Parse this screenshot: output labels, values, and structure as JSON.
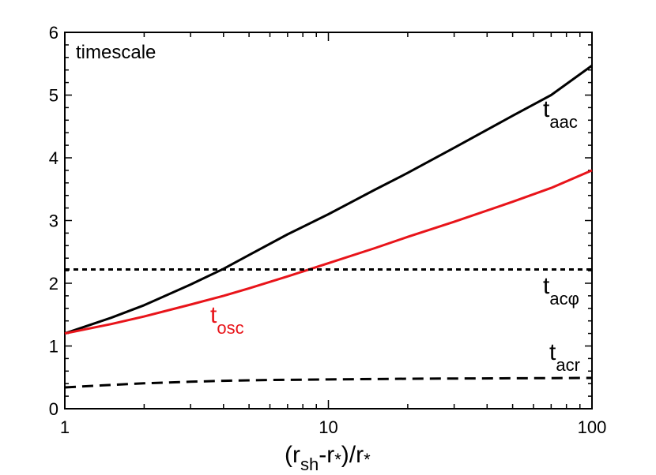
{
  "chart_data": {
    "type": "line",
    "title": "timescale",
    "xlabel": {
      "main": "(r",
      "sub1": "sh",
      "mid": "-r",
      "sub2": "*",
      "end": ")/r",
      "sub3": "*"
    },
    "ylabel": "",
    "xscale": "log",
    "xlim": [
      1,
      100
    ],
    "ylim": [
      0,
      6
    ],
    "x_ticks": [
      1,
      10,
      100
    ],
    "x_tick_labels": [
      "1",
      "10",
      "100"
    ],
    "y_ticks": [
      0,
      1,
      2,
      3,
      4,
      5,
      6
    ],
    "y_tick_labels": [
      "0",
      "1",
      "2",
      "3",
      "4",
      "5",
      "6"
    ],
    "grid": false,
    "series": [
      {
        "key": "aac",
        "label_main": "t",
        "label_sub": "aac",
        "color": "#000000",
        "dash": "solid",
        "x": [
          1,
          1.5,
          2,
          3,
          4,
          5,
          7,
          10,
          15,
          20,
          30,
          50,
          70,
          100
        ],
        "y": [
          1.2,
          1.45,
          1.65,
          1.98,
          2.23,
          2.45,
          2.78,
          3.1,
          3.49,
          3.76,
          4.16,
          4.67,
          5.0,
          5.47
        ]
      },
      {
        "key": "osc",
        "label_main": "t",
        "label_sub": "osc",
        "color": "#e8141a",
        "dash": "solid",
        "x": [
          1,
          1.5,
          2,
          3,
          4,
          5,
          7,
          10,
          15,
          20,
          30,
          50,
          70,
          100
        ],
        "y": [
          1.2,
          1.35,
          1.47,
          1.66,
          1.8,
          1.92,
          2.11,
          2.32,
          2.56,
          2.74,
          2.98,
          3.3,
          3.52,
          3.8
        ]
      },
      {
        "key": "acphi",
        "label_main": "t",
        "label_sub": "acφ",
        "color": "#000000",
        "dash": "short",
        "x": [
          1,
          100
        ],
        "y": [
          2.22,
          2.22
        ]
      },
      {
        "key": "acr",
        "label_main": "t",
        "label_sub": "acr",
        "color": "#000000",
        "dash": "long",
        "x": [
          1,
          1.5,
          2,
          3,
          4,
          6,
          10,
          20,
          50,
          100
        ],
        "y": [
          0.34,
          0.38,
          0.405,
          0.43,
          0.445,
          0.458,
          0.467,
          0.478,
          0.486,
          0.49
        ]
      }
    ]
  }
}
